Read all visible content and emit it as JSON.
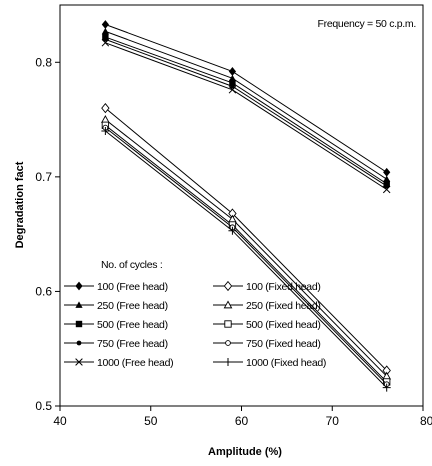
{
  "chart_data": {
    "type": "line",
    "title": "",
    "annotation": "Frequency = 50 c.p.m.",
    "xlabel": "Amplitude (%)",
    "ylabel": "Degradation fact",
    "xlim": [
      40,
      80
    ],
    "ylim": [
      0.5,
      0.85
    ],
    "x_ticks": [
      "40",
      "50",
      "60",
      "70",
      "80"
    ],
    "y_ticks": [
      "0.5",
      "0.6",
      "0.7",
      "0.8"
    ],
    "grid": false,
    "legend_title": "No. of cycles :",
    "legend_position": "bottom-left",
    "x": [
      45,
      59,
      76
    ],
    "series": [
      {
        "name": "100 (Free head)",
        "marker": "filled-diamond",
        "values": [
          0.833,
          0.792,
          0.704
        ]
      },
      {
        "name": "250 (Free head)",
        "marker": "filled-triangle",
        "values": [
          0.827,
          0.786,
          0.698
        ]
      },
      {
        "name": "500 (Free head)",
        "marker": "filled-square",
        "values": [
          0.822,
          0.782,
          0.694
        ]
      },
      {
        "name": "750 (Free head)",
        "marker": "filled-circle",
        "values": [
          0.82,
          0.779,
          0.692
        ]
      },
      {
        "name": "1000 (Free head)",
        "marker": "x",
        "values": [
          0.817,
          0.776,
          0.689
        ]
      },
      {
        "name": "100 (Fixed head)",
        "marker": "open-diamond",
        "values": [
          0.76,
          0.668,
          0.531
        ]
      },
      {
        "name": "250 (Fixed head)",
        "marker": "open-triangle",
        "values": [
          0.75,
          0.663,
          0.526
        ]
      },
      {
        "name": "500 (Fixed head)",
        "marker": "open-square",
        "values": [
          0.745,
          0.658,
          0.521
        ]
      },
      {
        "name": "750 (Fixed head)",
        "marker": "open-circle",
        "values": [
          0.743,
          0.656,
          0.519
        ]
      },
      {
        "name": "1000 (Fixed head)",
        "marker": "plus",
        "values": [
          0.74,
          0.653,
          0.516
        ]
      }
    ]
  }
}
